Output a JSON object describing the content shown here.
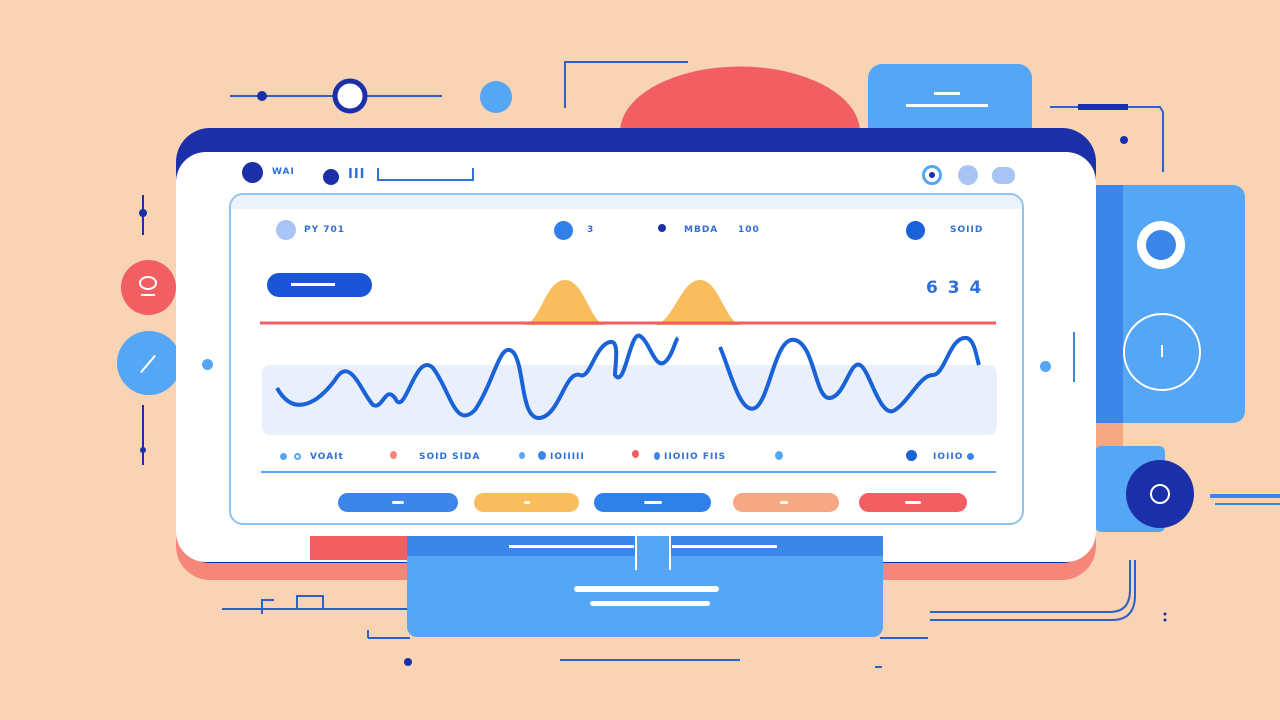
{
  "header": {
    "label_1": "WAI",
    "label_2": "III"
  },
  "stats": [
    {
      "label": "PY 701"
    },
    {
      "label": "3"
    },
    {
      "label": "MBDA",
      "value": "100"
    },
    {
      "label": "SOIID"
    }
  ],
  "big_number": "6 3 4",
  "legend": [
    "VOAIt",
    "SOID SIDA",
    "IOIIIII",
    "IIOIIO FIIS",
    "",
    "IOIIO"
  ],
  "colors": {
    "background": "#f8d3b4",
    "navy": "#1a2fa8",
    "blue": "#3b86e8",
    "yellow": "#f9bd5e",
    "salmon": "#f6a784",
    "red": "#f25f62",
    "sky": "#55a7f5"
  },
  "action_buttons": [
    "blue",
    "yellow",
    "blue",
    "salmon",
    "red"
  ]
}
